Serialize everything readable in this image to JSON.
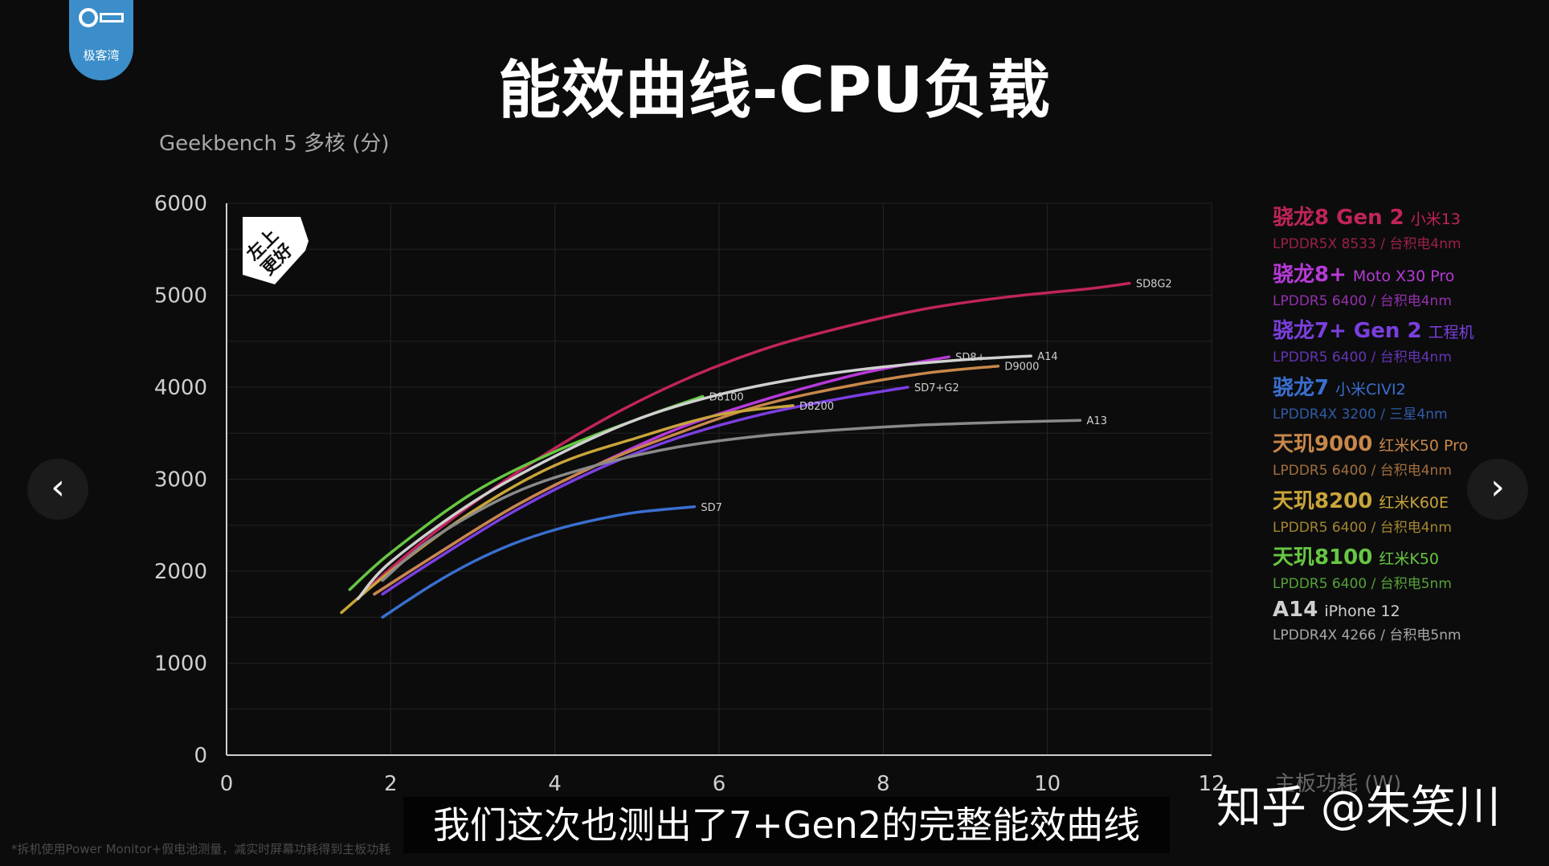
{
  "logo": {
    "text": "极客湾"
  },
  "title": "能效曲线-CPU负载",
  "y_axis_title": "Geekbench 5 多核 (分)",
  "badge": {
    "text_line1": "左上",
    "text_line2": "更好"
  },
  "nav": {
    "prev_icon": "chevron-left-icon",
    "next_icon": "chevron-right-icon"
  },
  "subtitle": "我们这次也测出了7+Gen2的完整能效曲线",
  "watermark": "知乎 @朱笑川",
  "footnote": "*拆机使用Power Monitor+假电池测量，减实时屏幕功耗得到主板功耗",
  "x_axis_title": "主板功耗 (W)",
  "legend": [
    {
      "chip": "骁龙8 Gen 2",
      "device": "小米13",
      "memory": "LPDDR5X 8533 / 台积电4nm",
      "color": "#c0245a"
    },
    {
      "chip": "骁龙8+",
      "device": "Moto X30 Pro",
      "memory": "LPDDR5 6400 / 台积电4nm",
      "color": "#b73ad8"
    },
    {
      "chip": "骁龙7+ Gen 2",
      "device": "工程机",
      "memory": "LPDDR5 6400 / 台积电4nm",
      "color": "#7b3fe0"
    },
    {
      "chip": "骁龙7",
      "device": "小米CIVI2",
      "memory": "LPDDR4X 3200 / 三星4nm",
      "color": "#3a6fd0"
    },
    {
      "chip": "天玑9000",
      "device": "红米K50 Pro",
      "memory": "LPDDR5 6400 / 台积电4nm",
      "color": "#c8874a"
    },
    {
      "chip": "天玑8200",
      "device": "红米K60E",
      "memory": "LPDDR5 6400 / 台积电4nm",
      "color": "#c9a53a"
    },
    {
      "chip": "天玑8100",
      "device": "红米K50",
      "memory": "LPDDR5 6400 / 台积电5nm",
      "color": "#67c743"
    },
    {
      "chip": "A14",
      "device": "iPhone 12",
      "memory": "LPDDR4X 4266 / 台积电5nm",
      "color": "#d0d0d0"
    }
  ],
  "chart_data": {
    "type": "line",
    "title": "能效曲线-CPU负载",
    "xlabel": "主板功耗 (W)",
    "ylabel": "Geekbench 5 多核 (分)",
    "xlim": [
      0,
      12
    ],
    "ylim": [
      0,
      6000
    ],
    "xticks": [
      0,
      2,
      4,
      6,
      8,
      10,
      12
    ],
    "yticks": [
      0,
      1000,
      2000,
      3000,
      4000,
      5000,
      6000
    ],
    "grid": true,
    "legend_position": "right",
    "series": [
      {
        "name": "骁龙8 Gen 2",
        "label": "SD8G2",
        "color": "#c0245a",
        "x": [
          1.7,
          2.5,
          3.5,
          4.5,
          5.5,
          6.5,
          7.5,
          8.5,
          9.5,
          10.5,
          11.0
        ],
        "y": [
          1800,
          2400,
          3050,
          3600,
          4050,
          4400,
          4650,
          4850,
          4980,
          5070,
          5130
        ]
      },
      {
        "name": "骁龙8+",
        "label": "SD8+",
        "color": "#b73ad8",
        "x": [
          1.8,
          2.5,
          3.5,
          4.5,
          5.5,
          6.5,
          7.5,
          8.0,
          8.8
        ],
        "y": [
          1750,
          2150,
          2700,
          3150,
          3550,
          3850,
          4100,
          4200,
          4330
        ]
      },
      {
        "name": "骁龙7+ Gen 2",
        "label": "SD7+G2",
        "color": "#7b3fe0",
        "x": [
          1.9,
          2.5,
          3.5,
          4.5,
          5.5,
          6.5,
          7.5,
          8.3
        ],
        "y": [
          1750,
          2100,
          2650,
          3100,
          3450,
          3700,
          3880,
          4000
        ]
      },
      {
        "name": "骁龙7",
        "label": "SD7",
        "color": "#3a6fd0",
        "x": [
          1.9,
          2.5,
          3.0,
          3.5,
          4.0,
          4.5,
          5.0,
          5.7
        ],
        "y": [
          1500,
          1850,
          2100,
          2300,
          2450,
          2560,
          2640,
          2700
        ]
      },
      {
        "name": "天玑9000",
        "label": "D9000",
        "color": "#c8874a",
        "x": [
          1.8,
          2.5,
          3.5,
          4.5,
          5.5,
          6.5,
          7.5,
          8.5,
          9.4
        ],
        "y": [
          1750,
          2150,
          2700,
          3150,
          3500,
          3800,
          4000,
          4150,
          4230
        ]
      },
      {
        "name": "天玑8200",
        "label": "D8200",
        "color": "#c9a53a",
        "x": [
          1.4,
          2.0,
          3.0,
          4.0,
          5.0,
          6.0,
          6.9
        ],
        "y": [
          1550,
          2000,
          2650,
          3150,
          3450,
          3700,
          3800
        ]
      },
      {
        "name": "天玑8100",
        "label": "D8100",
        "color": "#67c743",
        "x": [
          1.5,
          2.0,
          3.0,
          4.0,
          5.0,
          5.8
        ],
        "y": [
          1800,
          2200,
          2850,
          3300,
          3650,
          3900
        ]
      },
      {
        "name": "A14",
        "label": "A14",
        "color": "#d0d0d0",
        "x": [
          1.6,
          2.0,
          3.0,
          4.0,
          5.0,
          6.0,
          7.0,
          8.0,
          9.0,
          9.8
        ],
        "y": [
          1700,
          2100,
          2750,
          3250,
          3650,
          3920,
          4100,
          4220,
          4300,
          4340
        ]
      },
      {
        "label": "A13",
        "color": "#8a8a8a",
        "x": [
          1.9,
          2.5,
          3.5,
          4.5,
          5.5,
          6.5,
          7.5,
          8.5,
          9.5,
          10.4
        ],
        "y": [
          1900,
          2350,
          2850,
          3150,
          3350,
          3470,
          3540,
          3590,
          3620,
          3640
        ]
      }
    ]
  }
}
